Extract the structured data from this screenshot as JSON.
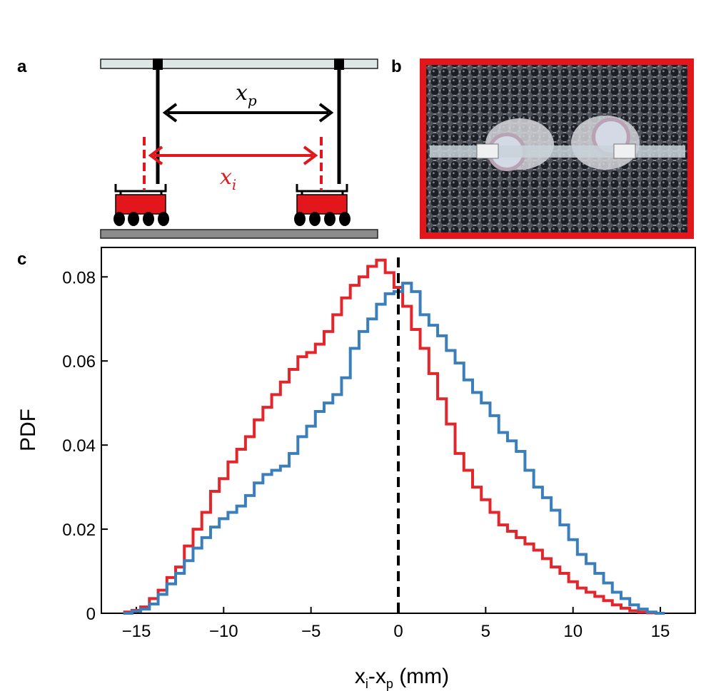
{
  "panels": {
    "a": "a",
    "b": "b",
    "c": "c"
  },
  "diagram_a": {
    "xp_label": "x",
    "xp_sub": "p",
    "xi_label": "x",
    "xi_sub": "i",
    "colors": {
      "red": "#e2161b",
      "black": "#000000",
      "bar": "#dfe6e6",
      "floor": "#8c8c8c"
    }
  },
  "photo_b": {
    "colors": {
      "border": "#e2161b",
      "background": "#4a4c55",
      "particle": "#1d1f26"
    }
  },
  "chart_data": {
    "type": "line",
    "title": "",
    "xlabel": "x",
    "xlabel_sub1": "i",
    "xlabel_mid": "-x",
    "xlabel_sub2": "p",
    "xlabel_unit": " (mm)",
    "ylabel": "PDF",
    "xlim": [
      -17,
      17
    ],
    "ylim": [
      0,
      0.087
    ],
    "xticks": [
      -15,
      -10,
      -5,
      0,
      5,
      10,
      15
    ],
    "xtick_labels": [
      "−15",
      "−10",
      "−5",
      "0",
      "5",
      "10",
      "15"
    ],
    "yticks": [
      0,
      0.02,
      0.04,
      0.06,
      0.08
    ],
    "ytick_labels": [
      "0",
      "0.02",
      "0.04",
      "0.06",
      "0.08"
    ],
    "grid": false,
    "vline_x": 0,
    "step": 0.5,
    "series": [
      {
        "color": "#e2262b",
        "x": [
          -15.5,
          -15,
          -14.5,
          -14,
          -13.5,
          -13,
          -12.5,
          -12,
          -11.5,
          -11,
          -10.5,
          -10,
          -9.5,
          -9,
          -8.5,
          -8,
          -7.5,
          -7,
          -6.5,
          -6,
          -5.5,
          -5,
          -4.5,
          -4,
          -3.5,
          -3,
          -2.5,
          -2,
          -1.5,
          -1,
          -0.5,
          0,
          0.5,
          1,
          1.5,
          2,
          2.5,
          3,
          3.5,
          4,
          4.5,
          5,
          5.5,
          6,
          6.5,
          7,
          7.5,
          8,
          8.5,
          9,
          9.5,
          10,
          10.5,
          11,
          11.5,
          12,
          12.5,
          13,
          13.5,
          14,
          14.5
        ],
        "values": [
          0.0003,
          0.0007,
          0.0015,
          0.0035,
          0.0055,
          0.0085,
          0.011,
          0.016,
          0.02,
          0.024,
          0.029,
          0.032,
          0.036,
          0.039,
          0.042,
          0.046,
          0.049,
          0.052,
          0.055,
          0.058,
          0.061,
          0.062,
          0.064,
          0.067,
          0.071,
          0.075,
          0.078,
          0.08,
          0.0825,
          0.084,
          0.081,
          0.0775,
          0.073,
          0.0675,
          0.063,
          0.057,
          0.051,
          0.045,
          0.038,
          0.034,
          0.03,
          0.027,
          0.024,
          0.021,
          0.0195,
          0.018,
          0.0165,
          0.015,
          0.013,
          0.011,
          0.0095,
          0.0075,
          0.006,
          0.005,
          0.004,
          0.003,
          0.002,
          0.0012,
          0.0006,
          0.0003,
          0.0001
        ]
      },
      {
        "color": "#3a7fbb",
        "x": [
          -15.5,
          -15,
          -14.5,
          -14,
          -13.5,
          -13,
          -12.5,
          -12,
          -11.5,
          -11,
          -10.5,
          -10,
          -9.5,
          -9,
          -8.5,
          -8,
          -7.5,
          -7,
          -6.5,
          -6,
          -5.5,
          -5,
          -4.5,
          -4,
          -3.5,
          -3,
          -2.5,
          -2,
          -1.5,
          -1,
          -0.5,
          0,
          0.5,
          1,
          1.5,
          2,
          2.5,
          3,
          3.5,
          4,
          4.5,
          5,
          5.5,
          6,
          6.5,
          7,
          7.5,
          8,
          8.5,
          9,
          9.5,
          10,
          10.5,
          11,
          11.5,
          12,
          12.5,
          13,
          13.5,
          14,
          14.5,
          15
        ],
        "values": [
          0,
          0.0005,
          0.001,
          0.0022,
          0.0045,
          0.007,
          0.0095,
          0.0125,
          0.0155,
          0.018,
          0.0205,
          0.0225,
          0.024,
          0.0255,
          0.028,
          0.031,
          0.033,
          0.034,
          0.035,
          0.038,
          0.042,
          0.0445,
          0.048,
          0.05,
          0.052,
          0.056,
          0.063,
          0.067,
          0.07,
          0.0735,
          0.076,
          0.0765,
          0.0785,
          0.0765,
          0.071,
          0.0685,
          0.066,
          0.0625,
          0.0595,
          0.0555,
          0.0525,
          0.05,
          0.047,
          0.043,
          0.041,
          0.0385,
          0.034,
          0.03,
          0.0275,
          0.0245,
          0.021,
          0.0175,
          0.014,
          0.0118,
          0.0095,
          0.0072,
          0.005,
          0.0035,
          0.002,
          0.001,
          0.0003,
          0
        ]
      }
    ]
  }
}
